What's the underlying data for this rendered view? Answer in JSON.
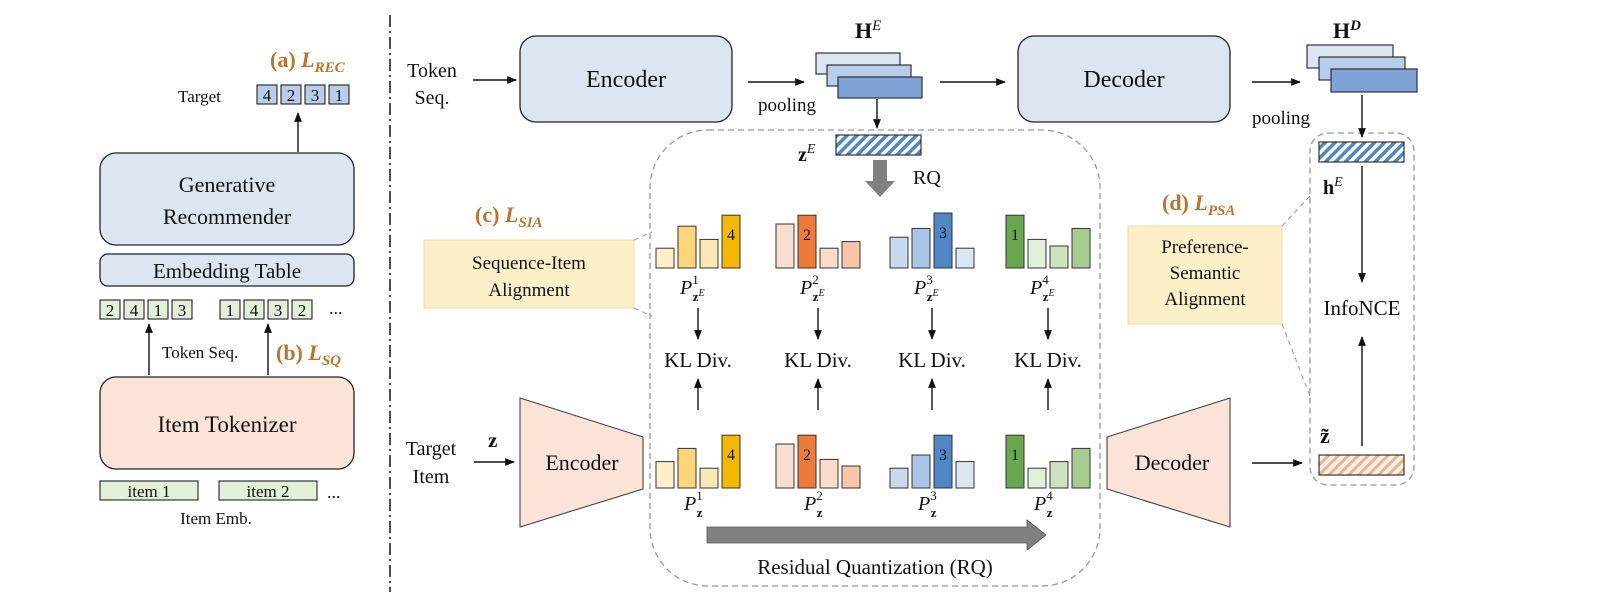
{
  "colors": {
    "blue_box": "#dce6f3",
    "peach_box": "#fbe3d7",
    "green_box": "#e2efd9",
    "note_box": "#fdf0c9",
    "orange_label": "#c0712a",
    "yellow": [
      "#fdf0c9",
      "#fcd679",
      "#fce7b3",
      "#f5b800"
    ],
    "orange": [
      "#f9ded0",
      "#ee7a3a",
      "#fbdcc9",
      "#f7c5a8"
    ],
    "blue": [
      "#c8d9ed",
      "#a9c4e4",
      "#4f86c6",
      "#dbe6f3"
    ],
    "green": [
      "#6aa84f",
      "#e2efd9",
      "#cde3bf",
      "#a6cc8f"
    ]
  },
  "left": {
    "label_a_prefix": "(a) ",
    "label_a_main": "L",
    "label_a_sub": "REC",
    "target_label": "Target",
    "target_tokens": [
      "4",
      "2",
      "3",
      "1"
    ],
    "generative_line1": "Generative",
    "generative_line2": "Recommender",
    "embedding_table": "Embedding Table",
    "token_group1": [
      "2",
      "4",
      "1",
      "3"
    ],
    "token_group2": [
      "1",
      "4",
      "3",
      "2"
    ],
    "ellipsis": "...",
    "token_seq_label": "Token Seq.",
    "label_b_prefix": "(b) ",
    "label_b_main": "L",
    "label_b_sub": "SQ",
    "item_tokenizer": "Item Tokenizer",
    "item1": "item 1",
    "item2": "item 2",
    "item_emb": "Item Emb."
  },
  "right": {
    "token_seq_line1": "Token",
    "token_seq_line2": "Seq.",
    "encoder": "Encoder",
    "decoder": "Decoder",
    "he_main": "H",
    "he_sup": "E",
    "hd_main": "H",
    "hd_sup": "D",
    "pooling": "pooling",
    "ze_main": "z",
    "ze_sup": "E",
    "rq": "RQ",
    "he_small_main": "h",
    "he_small_sup": "E",
    "infonce": "InfoNCE",
    "ztilde": "z̃",
    "label_c_prefix": "(c) ",
    "label_c_main": "L",
    "label_c_sub": "SIA",
    "sia_line1": "Sequence-Item",
    "sia_line2": "Alignment",
    "label_d_prefix": "(d) ",
    "label_d_main": "L",
    "label_d_sub": "PSA",
    "psa_line1": "Preference-",
    "psa_line2": "Semantic",
    "psa_line3": "Alignment",
    "kl": "KL Div.",
    "target_item_line1": "Target",
    "target_item_line2": "Item",
    "z_input": "z",
    "residual_quantization": "Residual Quantization (RQ)",
    "p_upper": [
      {
        "main": "P",
        "sup": "1",
        "sub": "z",
        "subsup": "E"
      },
      {
        "main": "P",
        "sup": "2",
        "sub": "z",
        "subsup": "E"
      },
      {
        "main": "P",
        "sup": "3",
        "sub": "z",
        "subsup": "E"
      },
      {
        "main": "P",
        "sup": "4",
        "sub": "z",
        "subsup": "E"
      }
    ],
    "p_lower": [
      {
        "main": "P",
        "sup": "1",
        "sub": "z"
      },
      {
        "main": "P",
        "sup": "2",
        "sub": "z"
      },
      {
        "main": "P",
        "sup": "3",
        "sub": "z"
      },
      {
        "main": "P",
        "sup": "4",
        "sub": "z"
      }
    ],
    "bar_groups_upper": [
      {
        "heights": [
          0.45,
          0.95,
          0.65,
          1.2
        ],
        "highlight": 3,
        "label": "4",
        "palette": "yellow"
      },
      {
        "heights": [
          1.0,
          1.2,
          0.45,
          0.6
        ],
        "highlight": 1,
        "label": "2",
        "palette": "orange"
      },
      {
        "heights": [
          0.7,
          0.9,
          1.25,
          0.45
        ],
        "highlight": 2,
        "label": "3",
        "palette": "blue"
      },
      {
        "heights": [
          1.2,
          0.65,
          0.5,
          0.9
        ],
        "highlight": 0,
        "label": "1",
        "palette": "green"
      }
    ],
    "bar_groups_lower": [
      {
        "heights": [
          0.6,
          0.9,
          0.45,
          1.2
        ],
        "highlight": 3,
        "label": "4",
        "palette": "yellow"
      },
      {
        "heights": [
          1.0,
          1.2,
          0.65,
          0.5
        ],
        "highlight": 1,
        "label": "2",
        "palette": "orange"
      },
      {
        "heights": [
          0.45,
          0.75,
          1.2,
          0.6
        ],
        "highlight": 2,
        "label": "3",
        "palette": "blue"
      },
      {
        "heights": [
          1.2,
          0.45,
          0.6,
          0.9
        ],
        "highlight": 0,
        "label": "1",
        "palette": "green"
      }
    ]
  }
}
